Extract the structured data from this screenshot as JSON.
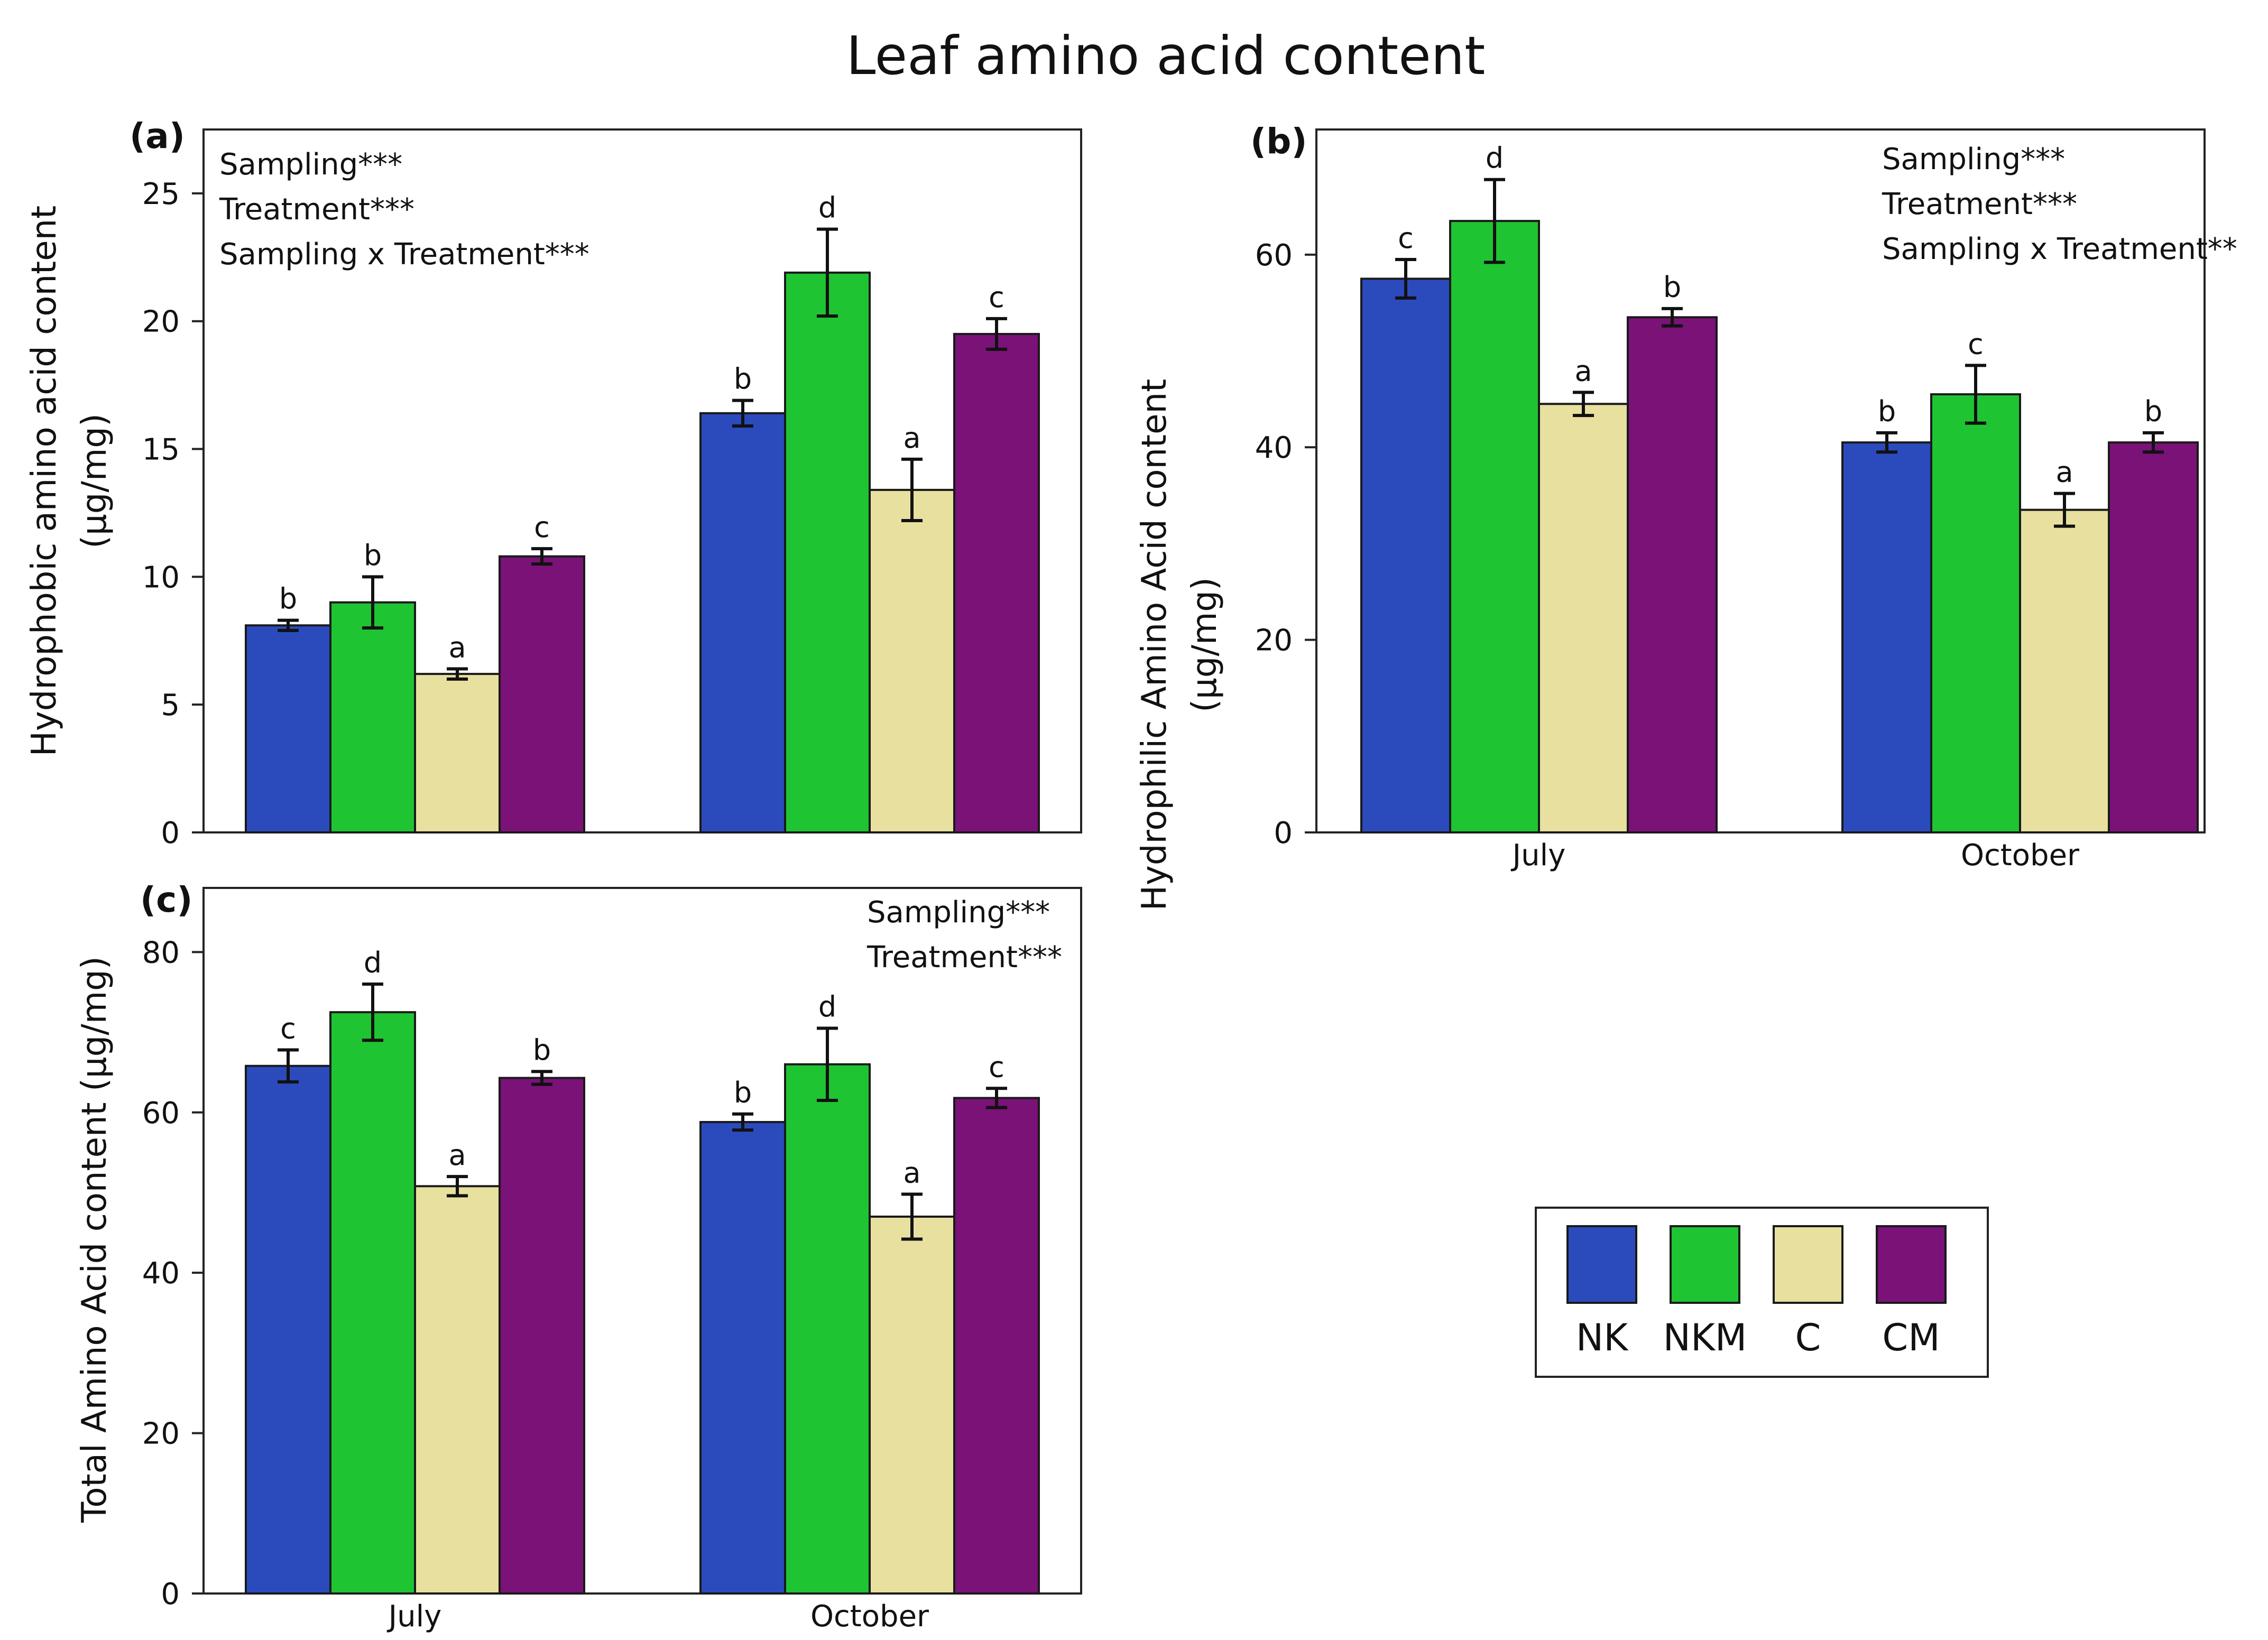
{
  "figure_title": "Leaf amino acid content",
  "colors": {
    "NK": "#2b4bbd",
    "NKM": "#1fc432",
    "C": "#e8e09f",
    "CM": "#7a1278"
  },
  "legend": {
    "entries": [
      "NK",
      "NKM",
      "C",
      "CM"
    ]
  },
  "chart_data": [
    {
      "panel": "(a)",
      "type": "bar",
      "categories": [
        "July",
        "October"
      ],
      "show_category_labels": false,
      "ylabel": "Hydrophobic amino acid content",
      "ylabel_units": "(µg/mg)",
      "ylim": [
        0,
        27.5
      ],
      "yticks": [
        0,
        5,
        10,
        15,
        20,
        25
      ],
      "annotations": [
        "Sampling***",
        "Treatment***",
        "Sampling x Treatment***"
      ],
      "annotation_position": "top-left",
      "series": [
        {
          "name": "NK",
          "values": [
            8.1,
            16.4
          ],
          "errors": [
            0.2,
            0.5
          ],
          "letters": [
            "b",
            "b"
          ]
        },
        {
          "name": "NKM",
          "values": [
            9.0,
            21.9
          ],
          "errors": [
            1.0,
            1.7
          ],
          "letters": [
            "b",
            "d"
          ]
        },
        {
          "name": "C",
          "values": [
            6.2,
            13.4
          ],
          "errors": [
            0.2,
            1.2
          ],
          "letters": [
            "a",
            "a"
          ]
        },
        {
          "name": "CM",
          "values": [
            10.8,
            19.5
          ],
          "errors": [
            0.3,
            0.6
          ],
          "letters": [
            "c",
            "c"
          ]
        }
      ]
    },
    {
      "panel": "(b)",
      "type": "bar",
      "categories": [
        "July",
        "October"
      ],
      "show_category_labels": true,
      "ylabel": "Hydrophilic Amino Acid content",
      "ylabel_units": "(µg/mg)",
      "ylim": [
        0,
        73
      ],
      "yticks": [
        0,
        20,
        40,
        60
      ],
      "annotations": [
        "Sampling***",
        "Treatment***",
        "Sampling x Treatment**"
      ],
      "annotation_position": "top-right",
      "series": [
        {
          "name": "NK",
          "values": [
            57.5,
            40.5
          ],
          "errors": [
            2.0,
            1.0
          ],
          "letters": [
            "c",
            "b"
          ]
        },
        {
          "name": "NKM",
          "values": [
            63.5,
            45.5
          ],
          "errors": [
            4.3,
            3.0
          ],
          "letters": [
            "d",
            "c"
          ]
        },
        {
          "name": "C",
          "values": [
            44.5,
            33.5
          ],
          "errors": [
            1.2,
            1.7
          ],
          "letters": [
            "a",
            "a"
          ]
        },
        {
          "name": "CM",
          "values": [
            53.5,
            40.5
          ],
          "errors": [
            0.9,
            1.0
          ],
          "letters": [
            "b",
            "b"
          ]
        }
      ]
    },
    {
      "panel": "(c)",
      "type": "bar",
      "categories": [
        "July",
        "October"
      ],
      "show_category_labels": true,
      "ylabel": "Total Amino Acid content  (µg/mg)",
      "ylabel_units": "",
      "ylim": [
        0,
        88
      ],
      "yticks": [
        0,
        20,
        40,
        60,
        80
      ],
      "annotations": [
        "Sampling***",
        "Treatment***"
      ],
      "annotation_position": "top-right",
      "series": [
        {
          "name": "NK",
          "values": [
            65.8,
            58.8
          ],
          "errors": [
            2.0,
            1.0
          ],
          "letters": [
            "c",
            "b"
          ]
        },
        {
          "name": "NKM",
          "values": [
            72.5,
            66.0
          ],
          "errors": [
            3.5,
            4.5
          ],
          "letters": [
            "d",
            "d"
          ]
        },
        {
          "name": "C",
          "values": [
            50.8,
            47.0
          ],
          "errors": [
            1.2,
            2.8
          ],
          "letters": [
            "a",
            "a"
          ]
        },
        {
          "name": "CM",
          "values": [
            64.3,
            61.8
          ],
          "errors": [
            0.8,
            1.2
          ],
          "letters": [
            "b",
            "c"
          ]
        }
      ]
    }
  ]
}
